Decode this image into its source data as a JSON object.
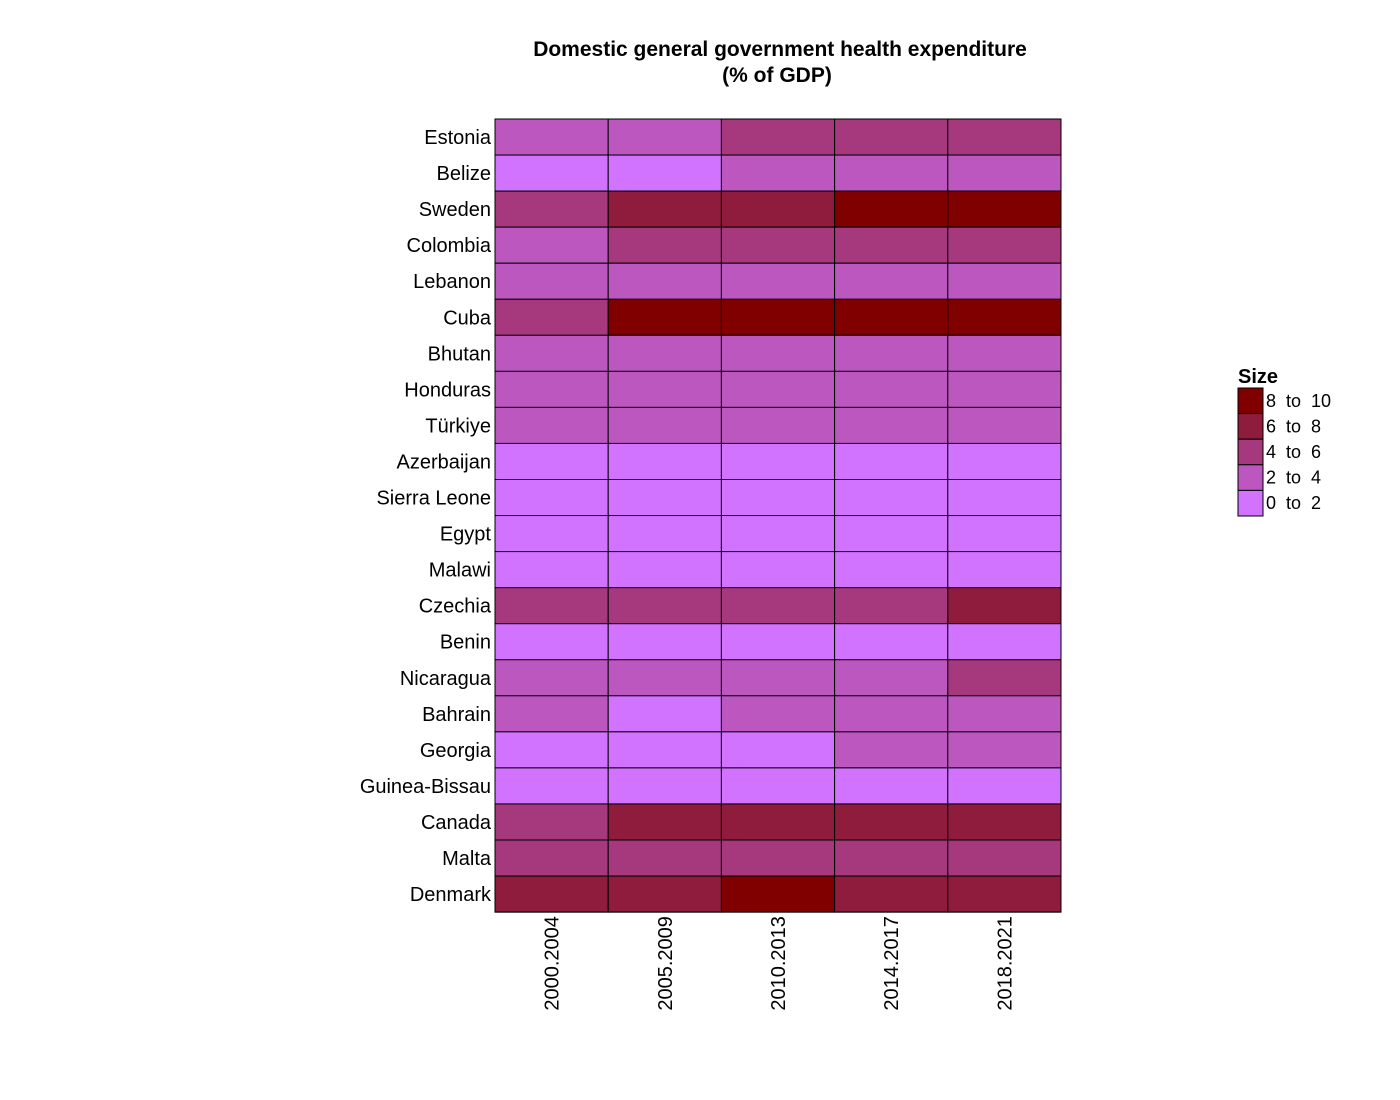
{
  "chart_data": {
    "type": "heatmap",
    "title": [
      "Domestic general government health expenditure",
      "(% of GDP)"
    ],
    "xlabel": "",
    "ylabel": "",
    "x": [
      "2000.2004",
      "2005.2009",
      "2010.2013",
      "2014.2017",
      "2018.2021"
    ],
    "y": [
      "Estonia",
      "Belize",
      "Sweden",
      "Colombia",
      "Lebanon",
      "Cuba",
      "Bhutan",
      "Honduras",
      "Türkiye",
      "Azerbaijan",
      "Sierra Leone",
      "Egypt",
      "Malawi",
      "Czechia",
      "Benin",
      "Nicaragua",
      "Bahrain",
      "Georgia",
      "Guinea-Bissau",
      "Canada",
      "Malta",
      "Denmark"
    ],
    "bins": [
      {
        "label": "8  to  10",
        "color": "#800000"
      },
      {
        "label": "6  to  8",
        "color": "#8f1c3d"
      },
      {
        "label": "4  to  6",
        "color": "#a6387e"
      },
      {
        "label": "2  to  4",
        "color": "#bc57c0"
      },
      {
        "label": "0  to  2",
        "color": "#d173fe"
      }
    ],
    "categories_matrix": [
      [
        "2  to  4",
        "2  to  4",
        "4  to  6",
        "4  to  6",
        "4  to  6"
      ],
      [
        "0  to  2",
        "0  to  2",
        "2  to  4",
        "2  to  4",
        "2  to  4"
      ],
      [
        "4  to  6",
        "6  to  8",
        "6  to  8",
        "8  to  10",
        "8  to  10"
      ],
      [
        "2  to  4",
        "4  to  6",
        "4  to  6",
        "4  to  6",
        "4  to  6"
      ],
      [
        "2  to  4",
        "2  to  4",
        "2  to  4",
        "2  to  4",
        "2  to  4"
      ],
      [
        "4  to  6",
        "8  to  10",
        "8  to  10",
        "8  to  10",
        "8  to  10"
      ],
      [
        "2  to  4",
        "2  to  4",
        "2  to  4",
        "2  to  4",
        "2  to  4"
      ],
      [
        "2  to  4",
        "2  to  4",
        "2  to  4",
        "2  to  4",
        "2  to  4"
      ],
      [
        "2  to  4",
        "2  to  4",
        "2  to  4",
        "2  to  4",
        "2  to  4"
      ],
      [
        "0  to  2",
        "0  to  2",
        "0  to  2",
        "0  to  2",
        "0  to  2"
      ],
      [
        "0  to  2",
        "0  to  2",
        "0  to  2",
        "0  to  2",
        "0  to  2"
      ],
      [
        "0  to  2",
        "0  to  2",
        "0  to  2",
        "0  to  2",
        "0  to  2"
      ],
      [
        "0  to  2",
        "0  to  2",
        "0  to  2",
        "0  to  2",
        "0  to  2"
      ],
      [
        "4  to  6",
        "4  to  6",
        "4  to  6",
        "4  to  6",
        "6  to  8"
      ],
      [
        "0  to  2",
        "0  to  2",
        "0  to  2",
        "0  to  2",
        "0  to  2"
      ],
      [
        "2  to  4",
        "2  to  4",
        "2  to  4",
        "2  to  4",
        "4  to  6"
      ],
      [
        "2  to  4",
        "0  to  2",
        "2  to  4",
        "2  to  4",
        "2  to  4"
      ],
      [
        "0  to  2",
        "0  to  2",
        "0  to  2",
        "2  to  4",
        "2  to  4"
      ],
      [
        "0  to  2",
        "0  to  2",
        "0  to  2",
        "0  to  2",
        "0  to  2"
      ],
      [
        "4  to  6",
        "6  to  8",
        "6  to  8",
        "6  to  8",
        "6  to  8"
      ],
      [
        "4  to  6",
        "4  to  6",
        "4  to  6",
        "4  to  6",
        "4  to  6"
      ],
      [
        "6  to  8",
        "6  to  8",
        "8  to  10",
        "6  to  8",
        "6  to  8"
      ]
    ],
    "legend": {
      "title": "Size",
      "position": "right"
    },
    "grid": false
  }
}
